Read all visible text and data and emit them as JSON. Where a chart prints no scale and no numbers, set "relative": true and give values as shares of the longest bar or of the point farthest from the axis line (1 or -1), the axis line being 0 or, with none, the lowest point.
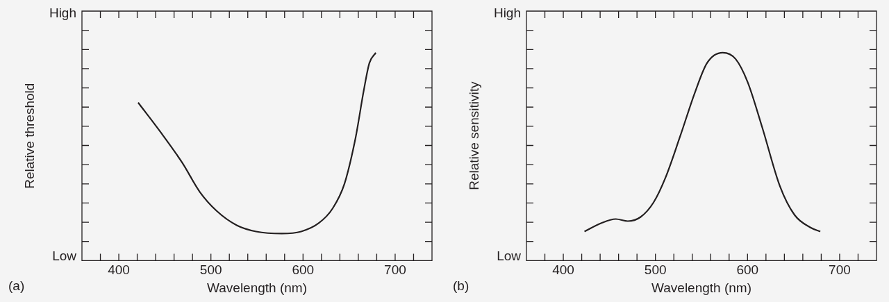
{
  "chart_data": [
    {
      "type": "line",
      "relative": true,
      "xlabel": "Wavelength (nm)",
      "ylabel": "Relative threshold",
      "annotations": [
        "High",
        "Low",
        "(a)"
      ],
      "series": [
        {
          "color": "#231f20",
          "x": [
            421,
            445,
            469,
            488,
            506,
            528,
            549,
            577,
            598,
            617,
            632,
            645,
            657,
            666,
            672,
            679
          ],
          "values": [
            0.76,
            0.62,
            0.47,
            0.33,
            0.24,
            0.17,
            0.14,
            0.13,
            0.14,
            0.18,
            0.25,
            0.37,
            0.59,
            0.82,
            0.95,
            1
          ]
        }
      ],
      "xlim": [
        360,
        740
      ],
      "xticks": [
        {
          "value": 380,
          "label": null
        },
        400,
        {
          "value": 420,
          "label": null
        },
        {
          "value": 440,
          "label": null
        },
        {
          "value": 460,
          "label": null
        },
        {
          "value": 480,
          "label": null
        },
        500,
        {
          "value": 520,
          "label": null
        },
        {
          "value": 540,
          "label": null
        },
        {
          "value": 560,
          "label": null
        },
        {
          "value": 580,
          "label": null
        },
        600,
        {
          "value": 620,
          "label": null
        },
        {
          "value": 640,
          "label": null
        },
        {
          "value": 660,
          "label": null
        },
        {
          "value": 680,
          "label": null
        },
        700,
        {
          "value": 720,
          "label": null
        }
      ],
      "grid": false,
      "legend": false,
      "marker": "none",
      "line_style": "solid"
    },
    {
      "type": "line",
      "relative": true,
      "xlabel": "Wavelength (nm)",
      "ylabel": "Relative sensitivity",
      "annotations": [
        "High",
        "Low",
        "(b)"
      ],
      "series": [
        {
          "color": "#231f20",
          "x": [
            423,
            441,
            457,
            470,
            484,
            498,
            511,
            527,
            543,
            556,
            573,
            587,
            600,
            616,
            635,
            651,
            668,
            679
          ],
          "values": [
            0.14,
            0.18,
            0.2,
            0.19,
            0.21,
            0.28,
            0.4,
            0.6,
            0.81,
            0.95,
            1,
            0.97,
            0.86,
            0.64,
            0.36,
            0.22,
            0.16,
            0.14
          ]
        }
      ],
      "xlim": [
        360,
        740
      ],
      "xticks": [
        {
          "value": 380,
          "label": null
        },
        400,
        {
          "value": 420,
          "label": null
        },
        {
          "value": 440,
          "label": null
        },
        {
          "value": 460,
          "label": null
        },
        {
          "value": 480,
          "label": null
        },
        500,
        {
          "value": 520,
          "label": null
        },
        {
          "value": 540,
          "label": null
        },
        {
          "value": 560,
          "label": null
        },
        {
          "value": 580,
          "label": null
        },
        600,
        {
          "value": 620,
          "label": null
        },
        {
          "value": 640,
          "label": null
        },
        {
          "value": 660,
          "label": null
        },
        {
          "value": 680,
          "label": null
        },
        700,
        {
          "value": 720,
          "label": null
        }
      ],
      "grid": false,
      "legend": false,
      "marker": "none",
      "line_style": "solid"
    }
  ]
}
